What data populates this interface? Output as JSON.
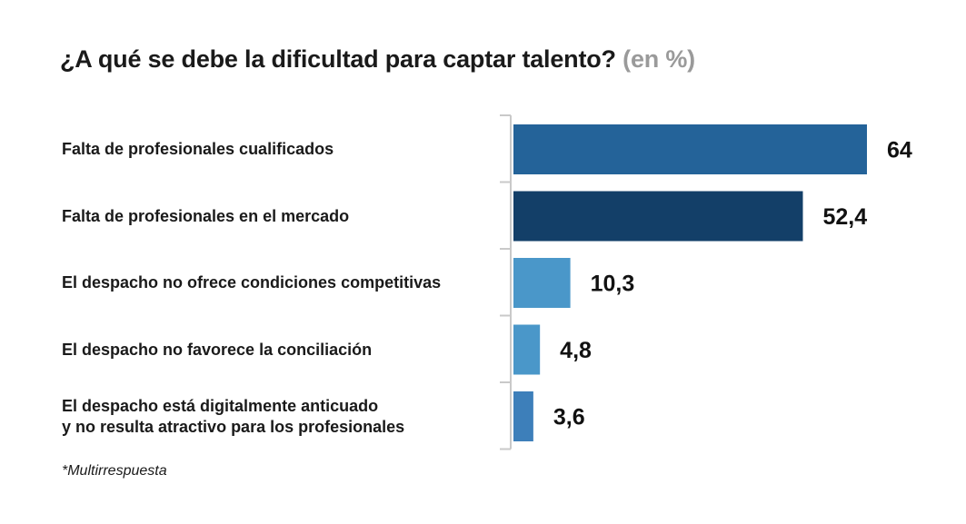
{
  "title": {
    "main": "¿A qué se debe la dificultad para captar talento?",
    "unit": "(en %)"
  },
  "footnote": "*Multirrespuesta",
  "chart_data": {
    "type": "bar",
    "orientation": "horizontal",
    "categories": [
      [
        "Falta de profesionales cualificados"
      ],
      [
        "Falta de profesionales en el mercado"
      ],
      [
        "El despacho no ofrece condiciones competitivas"
      ],
      [
        "El despacho no favorece la conciliación"
      ],
      [
        "El despacho está digitalmente anticuado",
        "y no resulta atractivo para los profesionales"
      ]
    ],
    "values": [
      64,
      52.4,
      10.3,
      4.8,
      3.6
    ],
    "value_labels": [
      "64",
      "52,4",
      "10,3",
      "4,8",
      "3,6"
    ],
    "bar_colors": [
      "#246399",
      "#133f68",
      "#4a97c9",
      "#4a97c9",
      "#3d7fba"
    ],
    "xlim": [
      0,
      64
    ],
    "grid": false
  }
}
